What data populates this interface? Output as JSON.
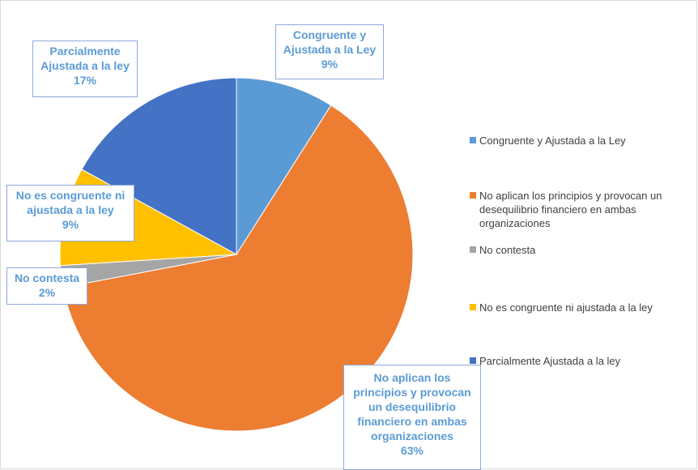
{
  "chart_data": {
    "type": "pie",
    "slices": [
      {
        "label": "Congruente y Ajustada a la Ley",
        "value": 9,
        "percent_label": "9%",
        "color": "#5b9bd5"
      },
      {
        "label": "No aplican los principios y provocan un desequilibrio financiero en ambas organizaciones",
        "value": 63,
        "percent_label": "63%",
        "color": "#ed7d31"
      },
      {
        "label": "No contesta",
        "value": 2,
        "percent_label": "2%",
        "color": "#a5a5a5"
      },
      {
        "label": "No es congruente ni ajustada a la ley",
        "value": 9,
        "percent_label": "9%",
        "color": "#ffc000"
      },
      {
        "label": "Parcialmente Ajustada a la ley",
        "value": 17,
        "percent_label": "17%",
        "color": "#4472c4"
      }
    ],
    "data_labels": [
      {
        "lines": [
          "Congruente y",
          "Ajustada a la Ley",
          "9%"
        ]
      },
      {
        "lines": [
          "No aplican  los",
          "principios y provocan",
          "un desequilibrio",
          "financiero  en ambas",
          "organizaciones",
          "63%"
        ]
      },
      {
        "lines": [
          "No contesta",
          "2%"
        ]
      },
      {
        "lines": [
          "No es congruente ni",
          "ajustada a la ley",
          "9%"
        ]
      },
      {
        "lines": [
          "Parcialmente",
          "Ajustada a la ley",
          "17%"
        ]
      }
    ],
    "legend": {
      "position": "right",
      "entries": [
        "Congruente y Ajustada a la Ley",
        "No aplican los principios y provocan un desequilibrio financiero en ambas organizaciones",
        "No contesta",
        "No es congruente ni ajustada a la ley",
        "Parcialmente Ajustada a la ley"
      ]
    }
  }
}
